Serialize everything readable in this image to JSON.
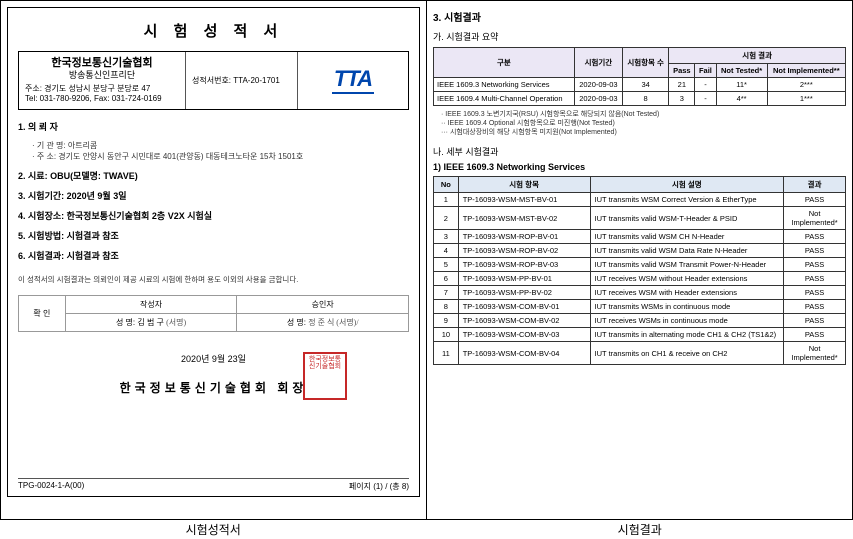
{
  "left": {
    "title": "시 험  성 적 서",
    "org_title": "한국정보통신기술협회",
    "org_sub": "방송통신인프리단",
    "org_addr": "주소: 경기도 성남시 분당구 분당로 47",
    "org_tel": "Tel: 031-780-9206, Fax: 031-724-0169",
    "ref_label": "성적서번호:",
    "ref_no": "TTA-20-1701",
    "logo_text": "TTA",
    "s1_head": "1. 의 뢰 자",
    "s1_a": "· 기 관 명: 아트리콤",
    "s1_b": "· 주    소: 경기도 안양시 동안구 시민대로 401(관양동) 대동테크노타운 15차 1501호",
    "s2_head": "2. 시료: OBU(모델명: TWAVE)",
    "s3_head": "3. 시험기간: 2020년 9월 3일",
    "s4_head": "4. 시험장소: 한국정보통신기술협회 2층 V2X 시험실",
    "s5_head": "5. 시험방법: 시험결과 참조",
    "s6_head": "6. 시험결과: 시험결과 참조",
    "note": "이 성적서의 시험결과는 의뢰인이 제공 시료의 시험에 한하며 용도 이외의 사용을 금합니다.",
    "sig_conf": "확  인",
    "sig_writer_h": "작성자",
    "sig_appr_h": "승인자",
    "sig_name_lbl": "성  명:",
    "sig_writer": "김 범 구",
    "sig_sign": "(서명)",
    "sig_appr": "정 준 식 (서명)/",
    "stamp_date": "2020년 9월 23일",
    "stamp_org": "한국정보통신기술협회 회장",
    "seal_text": "한국정보통신기술협회",
    "footer_left": "TPG-0024-1-A(00)",
    "footer_right": "페이지 (1) / (총 8)"
  },
  "right": {
    "sec3": "3. 시험결과",
    "sec_ga": "가. 시험결과 요약",
    "sum_headers": {
      "c1": "구분",
      "c2": "시험기간",
      "c3": "시험항목 수",
      "c4": "시험 결과",
      "c4a": "Pass",
      "c4b": "Fail",
      "c4c": "Not Tested*",
      "c4d": "Not Implemented**"
    },
    "sum_rows": [
      {
        "a": "IEEE 1609.3 Networking Services",
        "b": "2020-09-03",
        "c": "34",
        "d": "21",
        "e": "-",
        "f": "11*",
        "g": "2***"
      },
      {
        "a": "IEEE 1609.4 Multi-Channel Operation",
        "b": "2020-09-03",
        "c": "8",
        "d": "3",
        "e": "-",
        "f": "4**",
        "g": "1***"
      }
    ],
    "rnote1": "· IEEE 1609.3 노변기지국(RSU) 시험항목으로 해당되지 않음(Not Tested)",
    "rnote2": "·· IEEE 1609.4 Optional 시험항목으로 미진행(Not Tested)",
    "rnote3": "··· 시험대상장비의 해당 시험항목 미지원(Not Implemented)",
    "sec_na": "나. 세부 시험결과",
    "sec_na_sub": "1) IEEE 1609.3 Networking Services",
    "det_headers": {
      "no": "No",
      "item": "시험 항목",
      "desc": "시험 설명",
      "res": "결과"
    },
    "det_rows": [
      {
        "no": "1",
        "item": "TP-16093-WSM-MST-BV-01",
        "desc": "IUT transmits WSM Correct Version & EtherType",
        "res": "PASS"
      },
      {
        "no": "2",
        "item": "TP-16093-WSM-MST-BV-02",
        "desc": "IUT transmits valid WSM-T-Header & PSID",
        "res": "Not Implemented*"
      },
      {
        "no": "3",
        "item": "TP-16093-WSM-ROP-BV-01",
        "desc": "IUT transmits valid WSM CH N-Header",
        "res": "PASS"
      },
      {
        "no": "4",
        "item": "TP-16093-WSM-ROP-BV-02",
        "desc": "IUT transmits valid WSM Data Rate N-Header",
        "res": "PASS"
      },
      {
        "no": "5",
        "item": "TP-16093-WSM-ROP-BV-03",
        "desc": "IUT transmits valid WSM Transmit Power-N-Header",
        "res": "PASS"
      },
      {
        "no": "6",
        "item": "TP-16093-WSM-PP-BV-01",
        "desc": "IUT receives WSM without Header extensions",
        "res": "PASS"
      },
      {
        "no": "7",
        "item": "TP-16093-WSM-PP-BV-02",
        "desc": "IUT receives WSM with Header extensions",
        "res": "PASS"
      },
      {
        "no": "8",
        "item": "TP-16093-WSM-COM-BV-01",
        "desc": "IUT transmits WSMs in continuous mode",
        "res": "PASS"
      },
      {
        "no": "9",
        "item": "TP-16093-WSM-COM-BV-02",
        "desc": "IUT receives WSMs in continuous mode",
        "res": "PASS"
      },
      {
        "no": "10",
        "item": "TP-16093-WSM-COM-BV-03",
        "desc": "IUT transmits in alternating mode CH1 & CH2 (TS1&2)",
        "res": "PASS"
      },
      {
        "no": "11",
        "item": "TP-16093-WSM-COM-BV-04",
        "desc": "IUT transmits on CH1 & receive on CH2",
        "res": "Not Implemented*"
      }
    ]
  },
  "captions": {
    "left": "시험성적서",
    "right": "시험결과"
  },
  "colors": {
    "accent": "#0046ad",
    "seal": "#c62828",
    "sum_th_bg": "#ebe7f5",
    "det_th_bg": "#dfe8f3"
  }
}
